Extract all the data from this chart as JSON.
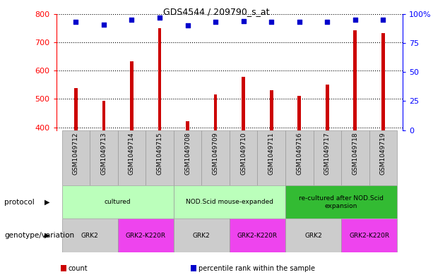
{
  "title": "GDS4544 / 209790_s_at",
  "samples": [
    "GSM1049712",
    "GSM1049713",
    "GSM1049714",
    "GSM1049715",
    "GSM1049708",
    "GSM1049709",
    "GSM1049710",
    "GSM1049711",
    "GSM1049716",
    "GSM1049717",
    "GSM1049718",
    "GSM1049719"
  ],
  "counts": [
    538,
    493,
    632,
    750,
    422,
    516,
    578,
    530,
    512,
    550,
    742,
    732
  ],
  "percentiles": [
    93,
    91,
    95,
    97,
    90,
    93,
    94,
    93,
    93,
    93,
    95,
    95
  ],
  "ylim_left": [
    390,
    800
  ],
  "ylim_right": [
    0,
    100
  ],
  "yticks_left": [
    400,
    500,
    600,
    700,
    800
  ],
  "yticks_right": [
    0,
    25,
    50,
    75,
    100
  ],
  "bar_color": "#cc0000",
  "dot_color": "#0000cc",
  "protocol_groups": [
    {
      "label": "cultured",
      "start": 0,
      "end": 4,
      "color": "#bbffbb"
    },
    {
      "label": "NOD.Scid mouse-expanded",
      "start": 4,
      "end": 8,
      "color": "#bbffbb"
    },
    {
      "label": "re-cultured after NOD.Scid\nexpansion",
      "start": 8,
      "end": 12,
      "color": "#33bb33"
    }
  ],
  "genotype_groups": [
    {
      "label": "GRK2",
      "start": 0,
      "end": 2,
      "color": "#cccccc"
    },
    {
      "label": "GRK2-K220R",
      "start": 2,
      "end": 4,
      "color": "#ee44ee"
    },
    {
      "label": "GRK2",
      "start": 4,
      "end": 6,
      "color": "#cccccc"
    },
    {
      "label": "GRK2-K220R",
      "start": 6,
      "end": 8,
      "color": "#ee44ee"
    },
    {
      "label": "GRK2",
      "start": 8,
      "end": 10,
      "color": "#cccccc"
    },
    {
      "label": "GRK2-K220R",
      "start": 10,
      "end": 12,
      "color": "#ee44ee"
    }
  ],
  "legend_items": [
    {
      "label": "count",
      "color": "#cc0000"
    },
    {
      "label": "percentile rank within the sample",
      "color": "#0000cc"
    }
  ],
  "sample_bg_color": "#cccccc",
  "sample_border_color": "#999999"
}
